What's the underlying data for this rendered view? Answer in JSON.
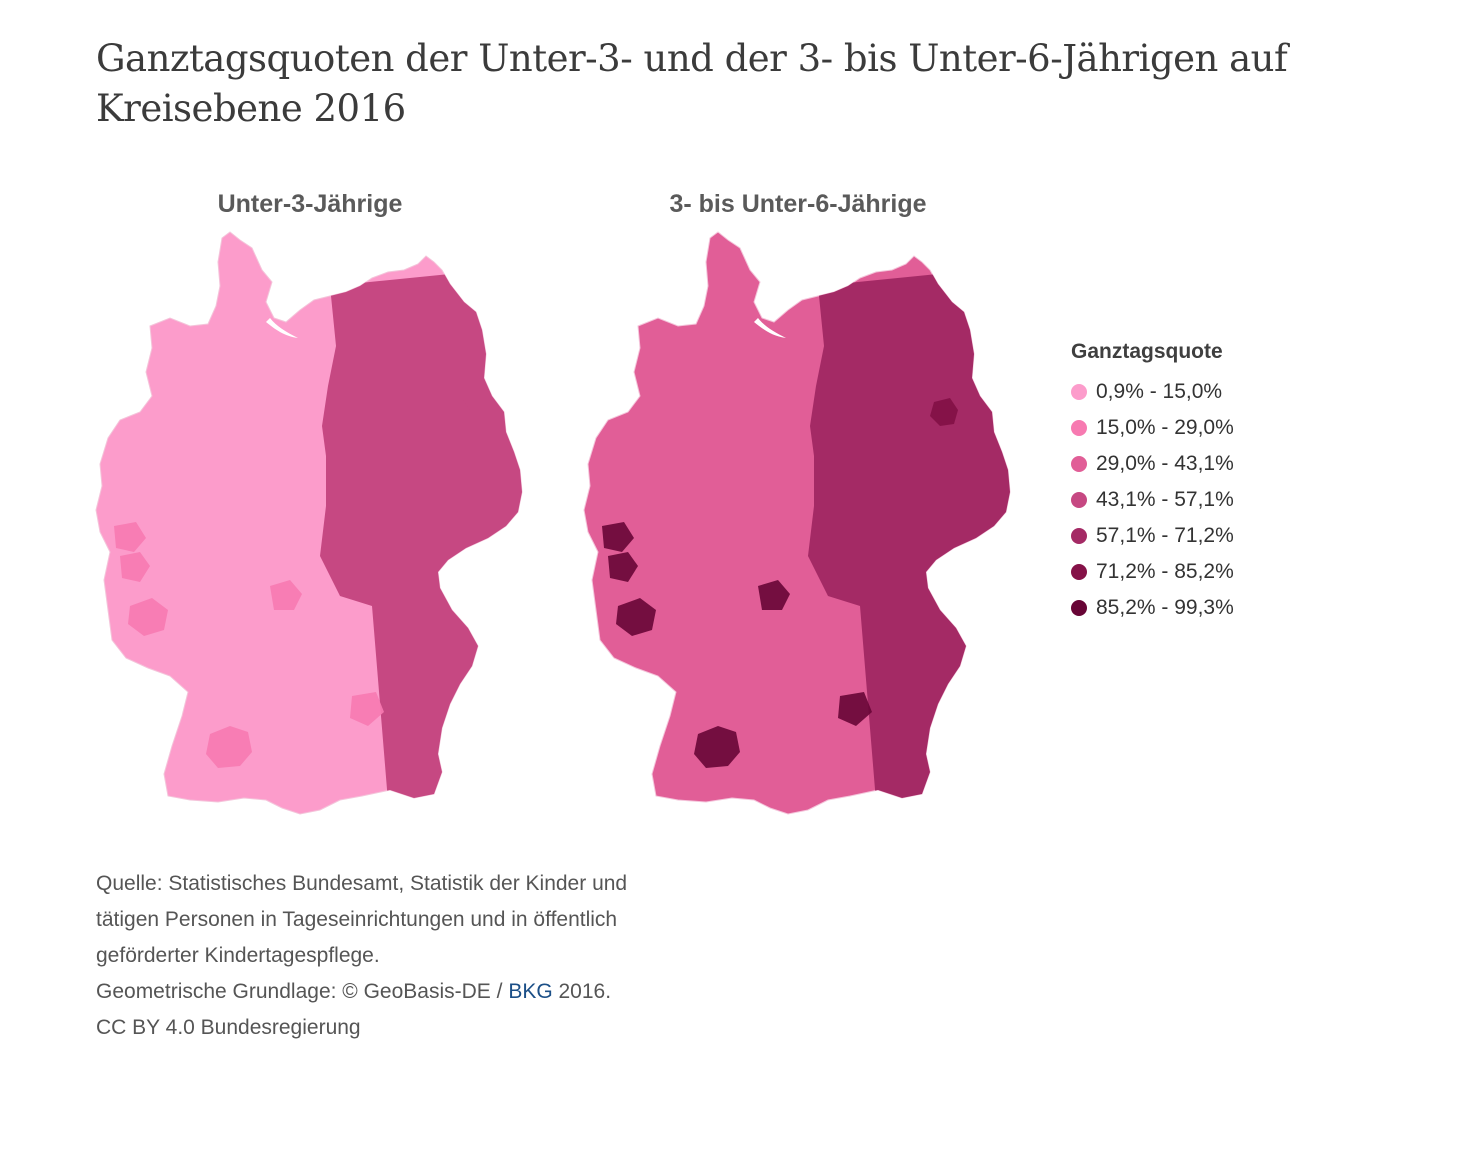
{
  "title": "Ganztagsquoten der Unter-3- und der 3- bis Unter-6-Jährigen auf Kreisebene 2016",
  "maps": [
    {
      "heading": "Unter-3-Jährige",
      "east_class": 3,
      "west_class": 0,
      "hotspot_class": 1,
      "berlin_class": 3
    },
    {
      "heading": "3- bis Unter-6-Jährige",
      "east_class": 4,
      "west_class": 2,
      "hotspot_class": 6,
      "berlin_class": 5
    }
  ],
  "legend": {
    "title": "Ganztagsquote",
    "items": [
      {
        "label": "0,9% - 15,0%",
        "color": "#fc9ccb"
      },
      {
        "label": "15,0% - 29,0%",
        "color": "#f77ab1"
      },
      {
        "label": "29,0% - 43,1%",
        "color": "#e15e97"
      },
      {
        "label": "43,1% - 57,1%",
        "color": "#c64882"
      },
      {
        "label": "57,1% - 71,2%",
        "color": "#a42a65"
      },
      {
        "label": "71,2% - 85,2%",
        "color": "#851248"
      },
      {
        "label": "85,2% - 99,3%",
        "color": "#680536"
      }
    ]
  },
  "source": {
    "line1": "Quelle: Statistisches Bundesamt, Statistik der Kinder und tätigen Personen in Tageseinrichtungen und in öffentlich geförderter Kindertagespflege.",
    "line2_prefix": "Geometrische Grundlage: © GeoBasis-DE / ",
    "line2_link": "BKG",
    "line2_suffix": " 2016.",
    "line3": "CC BY 4.0 Bundesregierung"
  }
}
